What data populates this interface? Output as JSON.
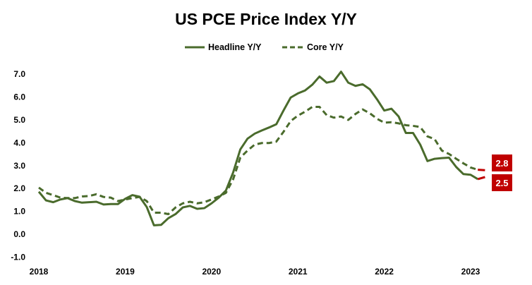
{
  "chart_data": {
    "type": "line",
    "title": "US PCE Price Index Y/Y",
    "xlabel": "",
    "ylabel": "",
    "legend_position": "top",
    "grid": false,
    "ylim": [
      -1.0,
      7.0
    ],
    "y_ticks": [
      "7.0",
      "6.0",
      "5.0",
      "4.0",
      "3.0",
      "2.0",
      "1.0",
      "0.0",
      "-1.0"
    ],
    "x_ticks": [
      "2018",
      "2019",
      "2020",
      "2021",
      "2022",
      "2023"
    ],
    "x_start": "2018-01",
    "x_frequency": "monthly",
    "series": [
      {
        "name": "Headline Y/Y",
        "style": "solid",
        "color": "#4a6b2c",
        "values": [
          1.86,
          1.48,
          1.4,
          1.52,
          1.58,
          1.45,
          1.38,
          1.4,
          1.42,
          1.3,
          1.32,
          1.32,
          1.55,
          1.71,
          1.64,
          1.19,
          0.39,
          0.41,
          0.7,
          0.88,
          1.17,
          1.24,
          1.11,
          1.14,
          1.35,
          1.6,
          1.91,
          2.7,
          3.71,
          4.18,
          4.4,
          4.54,
          4.67,
          4.81,
          5.41,
          5.98,
          6.16,
          6.29,
          6.54,
          6.9,
          6.63,
          6.7,
          7.11,
          6.63,
          6.49,
          6.56,
          6.34,
          5.9,
          5.41,
          5.49,
          5.15,
          4.43,
          4.43,
          3.92,
          3.2,
          3.3,
          3.33,
          3.35,
          2.94,
          2.63,
          2.6,
          2.41,
          2.5
        ]
      },
      {
        "name": "Core Y/Y",
        "style": "dashed",
        "color": "#4a6b2c",
        "values": [
          2.04,
          1.81,
          1.71,
          1.6,
          1.58,
          1.58,
          1.65,
          1.67,
          1.75,
          1.63,
          1.6,
          1.45,
          1.52,
          1.58,
          1.63,
          1.45,
          0.94,
          0.94,
          0.88,
          1.17,
          1.35,
          1.42,
          1.35,
          1.4,
          1.52,
          1.65,
          1.81,
          2.4,
          3.35,
          3.66,
          3.92,
          3.99,
          3.99,
          4.05,
          4.48,
          4.95,
          5.19,
          5.36,
          5.57,
          5.57,
          5.21,
          5.1,
          5.15,
          5.0,
          5.26,
          5.46,
          5.29,
          5.05,
          4.88,
          4.9,
          4.85,
          4.77,
          4.74,
          4.69,
          4.28,
          4.16,
          3.66,
          3.51,
          3.3,
          3.1,
          2.92,
          2.82,
          2.8
        ]
      }
    ],
    "annotations": [
      {
        "series": "Core Y/Y",
        "text": "2.8"
      },
      {
        "series": "Headline Y/Y",
        "text": "2.5"
      }
    ],
    "highlight_color": "#c00000"
  }
}
